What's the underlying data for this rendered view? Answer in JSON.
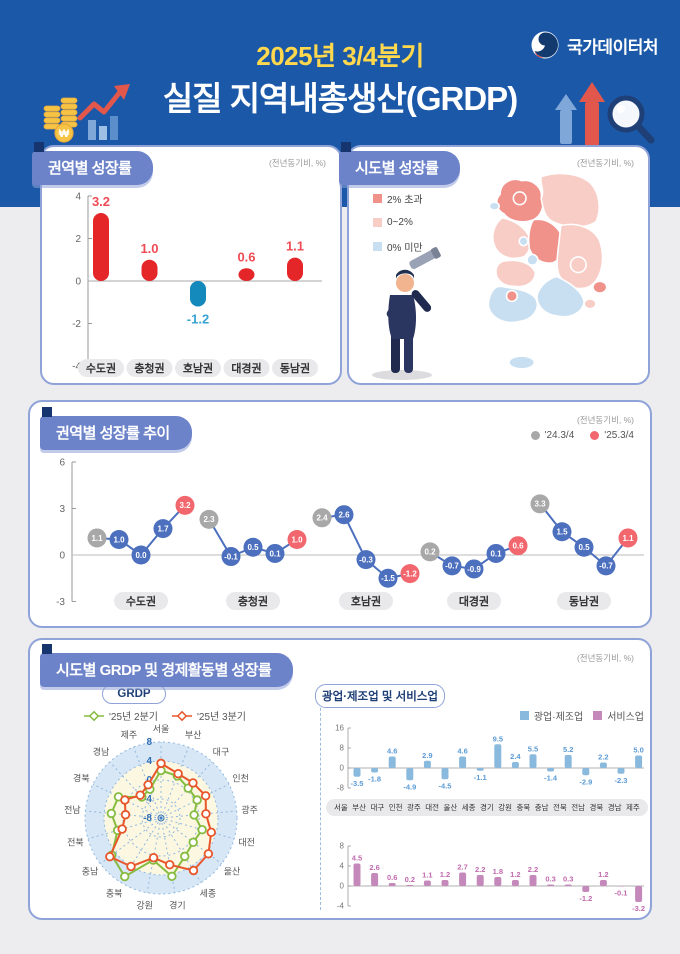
{
  "colors": {
    "header_bg": "#1B59A8",
    "page_bg": "#EDEDEF",
    "panel_border": "#8FA3D8",
    "title_pill": "#6D83C9",
    "ribbon_navy": "#16356E",
    "accent_yellow": "#FFD84D",
    "bar_positive": "#E52629",
    "bar_negative": "#1489BC",
    "label_positive": "#EF4B55",
    "label_negative": "#39A3D2",
    "line_blue": "#4C6FBE",
    "marker_gray": "#A8A8A8",
    "marker_red": "#F2666E",
    "map_over2": "#F0918A",
    "map_0to2": "#F7CDC6",
    "map_under0": "#C8DFF2",
    "radar_band": "#D8E7F6",
    "radar_inner": "#FCF7E1",
    "radar_grid": "#8FB8E0",
    "radar_tick": "#2F6EB5",
    "grdp_q2": "#86BC40",
    "grdp_q3": "#E8562B",
    "mining_bar": "#8AB9DE",
    "mining_label": "#5B9BD5",
    "services_bar": "#C489BA",
    "services_label": "#C06AAE"
  },
  "header": {
    "quarter": "2025년 3/4분기",
    "title": "실질 지역내총생산(GRDP)",
    "agency": "국가데이터처"
  },
  "panels": {
    "regional": {
      "title": "권역별 성장률",
      "unit": "(전년동기비, %)"
    },
    "map": {
      "title": "시도별 성장률",
      "unit": "(전년동기비, %)"
    },
    "trend": {
      "title": "권역별 성장률 추이",
      "unit": "(전년동기비, %)"
    },
    "bottom": {
      "title": "시도별 GRDP 및 경제활동별 성장률",
      "unit": "(전년동기비, %)",
      "grdp_title": "GRDP",
      "industry_title": "광업·제조업 및 서비스업"
    }
  },
  "chart_data": [
    {
      "id": "regional_bar",
      "type": "bar",
      "title": "권역별 성장률",
      "unit": "(전년동기비, %)",
      "categories": [
        "수도권",
        "충청권",
        "호남권",
        "대경권",
        "동남권"
      ],
      "values": [
        3.2,
        1.0,
        -1.2,
        0.6,
        1.1
      ],
      "ylim": [
        -4,
        4
      ],
      "yticks": [
        4,
        2,
        0,
        -2,
        -4
      ],
      "grid": false
    },
    {
      "id": "sido_choropleth",
      "type": "heatmap",
      "title": "시도별 성장률",
      "unit": "(전년동기비, %)",
      "legend": [
        {
          "label": "2% 초과",
          "color": "#F0918A"
        },
        {
          "label": "0~2%",
          "color": "#F7CDC6"
        },
        {
          "label": "0% 미만",
          "color": "#C8DFF2"
        }
      ],
      "regions": [
        {
          "name": "서울",
          "category": "2% 초과"
        },
        {
          "name": "부산",
          "category": "0~2%"
        },
        {
          "name": "대구",
          "category": "0~2%"
        },
        {
          "name": "인천",
          "category": "0% 미만"
        },
        {
          "name": "광주",
          "category": "2% 초과"
        },
        {
          "name": "대전",
          "category": "0% 미만"
        },
        {
          "name": "울산",
          "category": "2% 초과"
        },
        {
          "name": "세종",
          "category": "0% 미만"
        },
        {
          "name": "경기",
          "category": "2% 초과"
        },
        {
          "name": "강원",
          "category": "0~2%"
        },
        {
          "name": "충북",
          "category": "2% 초과"
        },
        {
          "name": "충남",
          "category": "0~2%"
        },
        {
          "name": "전북",
          "category": "0~2%"
        },
        {
          "name": "전남",
          "category": "0% 미만"
        },
        {
          "name": "경북",
          "category": "0~2%"
        },
        {
          "name": "경남",
          "category": "0% 미만"
        },
        {
          "name": "제주",
          "category": "0% 미만"
        }
      ]
    },
    {
      "id": "trend_line",
      "type": "line",
      "title": "권역별 성장률 추이",
      "unit": "(전년동기비, %)",
      "yticks": [
        6,
        3,
        0,
        -3
      ],
      "ylim": [
        -3,
        6
      ],
      "legend": [
        {
          "label": "'24.3/4",
          "color": "#A8A8A8"
        },
        {
          "label": "'25.3/4",
          "color": "#F2666E"
        }
      ],
      "groups": [
        {
          "name": "수도권",
          "values": [
            1.1,
            1.0,
            0.0,
            1.7,
            3.2
          ]
        },
        {
          "name": "충청권",
          "values": [
            2.3,
            -0.1,
            0.5,
            0.1,
            1.0
          ]
        },
        {
          "name": "호남권",
          "values": [
            2.4,
            2.6,
            -0.3,
            -1.5,
            -1.2
          ]
        },
        {
          "name": "대경권",
          "values": [
            0.2,
            -0.7,
            -0.9,
            0.1,
            0.6
          ]
        },
        {
          "name": "동남권",
          "values": [
            3.3,
            1.5,
            0.5,
            -0.7,
            1.1
          ]
        }
      ]
    },
    {
      "id": "grdp_radar",
      "type": "radar",
      "title": "GRDP",
      "rticks": [
        8,
        4,
        0,
        -4,
        -8
      ],
      "rlim": [
        -8,
        8
      ],
      "categories": [
        "서울",
        "부산",
        "대구",
        "인천",
        "광주",
        "대전",
        "울산",
        "세종",
        "경기",
        "강원",
        "충북",
        "충남",
        "전북",
        "전남",
        "경북",
        "경남",
        "제주"
      ],
      "series": [
        {
          "name": "'25년 2분기",
          "color": "#86BC40",
          "values": [
            2.0,
            1.5,
            0.5,
            0.5,
            -1.0,
            1.0,
            0.5,
            1.5,
            4.5,
            1.0,
            6.5,
            5.0,
            1.5,
            2.5,
            2.0,
            -2.0,
            -1.5
          ]
        },
        {
          "name": "'25년 3분기",
          "color": "#E8562B",
          "values": [
            3.5,
            2.0,
            2.0,
            2.5,
            1.5,
            3.0,
            4.5,
            5.0,
            2.0,
            0.5,
            4.0,
            5.5,
            0.5,
            -0.5,
            0.5,
            -1.5,
            -0.5
          ]
        }
      ]
    },
    {
      "id": "industry_bars",
      "type": "bar",
      "title": "광업·제조업 및 서비스업",
      "unit": "(전년동기비, %)",
      "categories": [
        "서울",
        "부산",
        "대구",
        "인천",
        "광주",
        "대전",
        "울산",
        "세종",
        "경기",
        "강원",
        "충북",
        "충남",
        "전북",
        "전남",
        "경북",
        "경남",
        "제주"
      ],
      "series": [
        {
          "name": "광업·제조업",
          "color": "#8AB9DE",
          "label_color": "#5B9BD5",
          "yticks": [
            16,
            8,
            0,
            -8
          ],
          "ylim": [
            -8,
            16
          ],
          "values": [
            -3.5,
            -1.8,
            4.6,
            -4.9,
            2.9,
            -4.5,
            4.6,
            -1.1,
            9.5,
            2.4,
            5.5,
            -1.4,
            5.2,
            -2.9,
            2.2,
            -2.3,
            5.0
          ]
        },
        {
          "name": "서비스업",
          "color": "#C489BA",
          "label_color": "#C06AAE",
          "yticks": [
            8,
            4,
            0,
            -4
          ],
          "ylim": [
            -4,
            8
          ],
          "values": [
            4.5,
            2.6,
            0.6,
            0.2,
            1.1,
            1.2,
            2.7,
            2.2,
            1.8,
            1.2,
            2.2,
            0.3,
            0.3,
            -1.2,
            1.2,
            -0.1,
            -3.2
          ]
        }
      ]
    }
  ]
}
